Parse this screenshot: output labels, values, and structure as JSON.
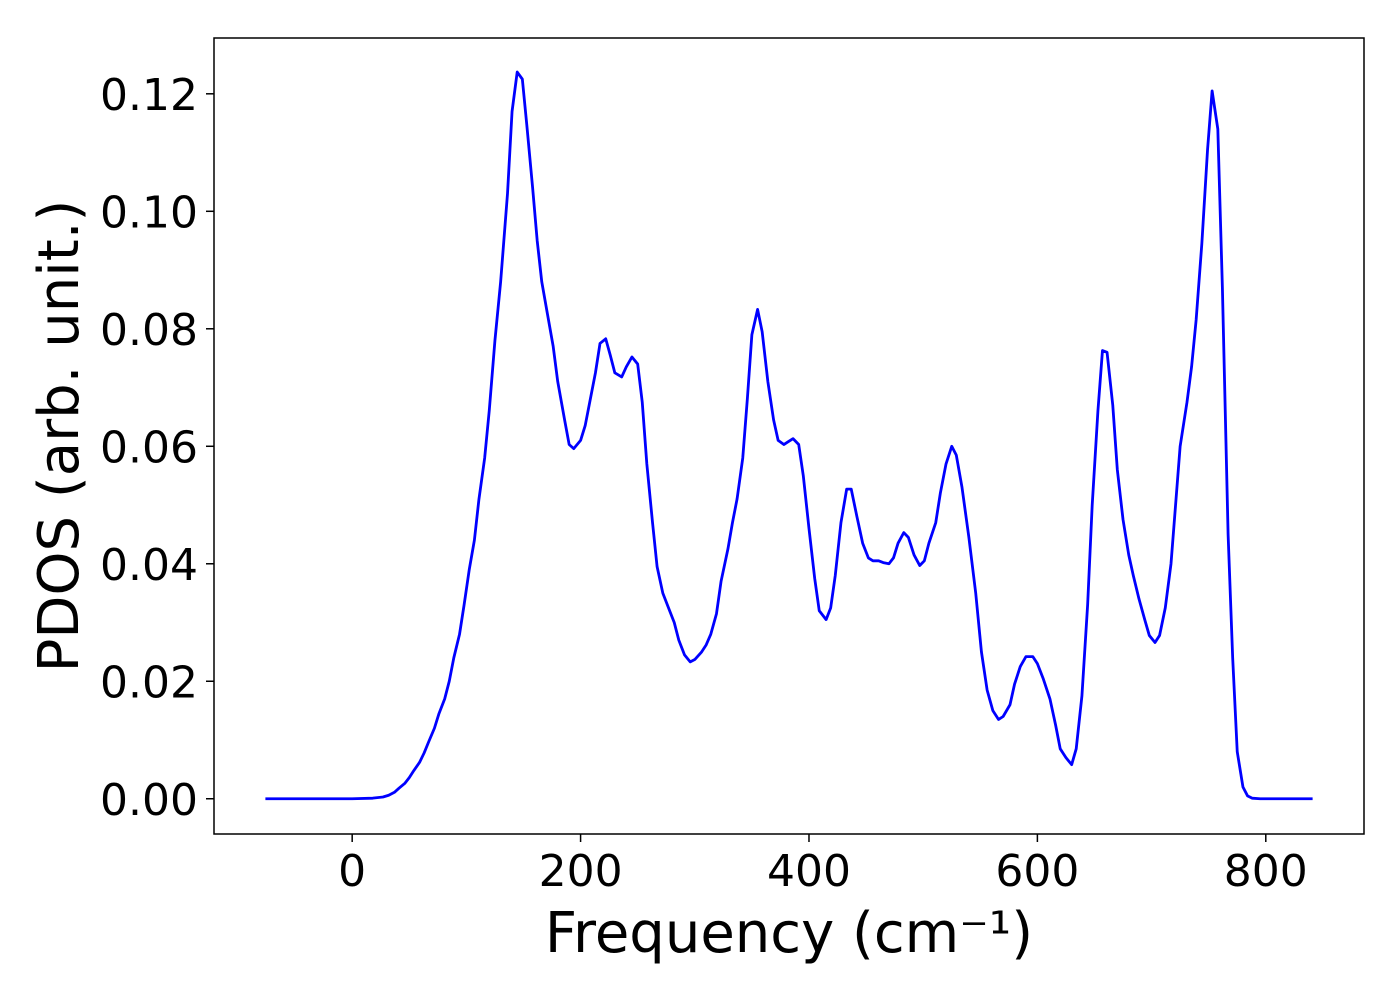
{
  "chart_data": {
    "type": "line",
    "xlabel": "Frequency (cm⁻¹)",
    "ylabel": "PDOS (arb. unit.)",
    "x": [
      -76,
      0,
      18,
      27,
      32,
      37,
      41,
      46,
      50,
      54,
      59,
      63,
      67,
      72,
      76,
      81,
      85,
      89,
      94,
      98,
      102.5,
      107,
      111,
      116,
      120,
      125,
      130,
      136,
      140,
      144.5,
      149,
      153,
      158,
      162,
      166,
      171,
      176,
      180,
      186,
      190,
      194,
      200,
      204,
      208,
      213,
      217,
      222,
      226,
      230,
      236,
      240,
      245,
      250,
      254,
      258,
      263,
      267,
      272,
      277,
      282,
      286,
      291,
      296,
      300,
      306,
      310,
      314,
      319,
      323,
      329,
      333,
      337,
      342,
      346,
      350,
      355,
      359,
      364,
      369,
      373,
      378,
      382,
      386,
      391,
      395,
      400,
      405,
      409,
      415,
      419,
      423,
      428,
      433,
      437,
      442,
      447,
      452,
      456,
      461,
      465,
      470,
      474,
      478,
      483,
      487,
      492,
      497,
      501,
      505,
      511,
      515,
      520,
      525,
      529,
      534,
      540,
      546,
      551,
      556,
      561,
      566,
      570,
      576,
      580,
      585,
      590,
      596,
      600,
      605,
      611,
      616,
      620,
      625,
      630,
      634,
      639,
      644,
      648,
      653,
      657,
      661,
      666,
      670,
      675,
      680,
      684,
      689,
      694,
      698,
      703,
      707,
      712,
      717,
      721,
      725,
      731,
      735,
      739,
      744,
      749,
      753,
      758,
      762,
      767,
      771,
      775,
      780,
      784,
      788,
      795,
      841
    ],
    "series": [
      {
        "name": "PDOS",
        "color": "#0000ff",
        "values": [
          0,
          0,
          0.0001,
          0.0003,
          0.0006,
          0.0011,
          0.0018,
          0.0026,
          0.0036,
          0.0048,
          0.0062,
          0.0078,
          0.0097,
          0.012,
          0.0145,
          0.017,
          0.02,
          0.024,
          0.028,
          0.033,
          0.039,
          0.044,
          0.051,
          0.058,
          0.066,
          0.078,
          0.088,
          0.103,
          0.117,
          0.1237,
          0.1225,
          0.1145,
          0.104,
          0.095,
          0.088,
          0.0825,
          0.077,
          0.071,
          0.0645,
          0.0603,
          0.0596,
          0.061,
          0.0635,
          0.0675,
          0.0725,
          0.0775,
          0.0783,
          0.0755,
          0.0725,
          0.0718,
          0.0735,
          0.0752,
          0.074,
          0.0675,
          0.057,
          0.047,
          0.0395,
          0.035,
          0.0325,
          0.03,
          0.027,
          0.0245,
          0.0233,
          0.0237,
          0.025,
          0.0262,
          0.028,
          0.0315,
          0.037,
          0.0425,
          0.047,
          0.051,
          0.058,
          0.068,
          0.079,
          0.0833,
          0.0795,
          0.071,
          0.0645,
          0.061,
          0.0603,
          0.0608,
          0.0613,
          0.0603,
          0.055,
          0.046,
          0.0375,
          0.032,
          0.0305,
          0.0325,
          0.038,
          0.047,
          0.0527,
          0.0527,
          0.048,
          0.0435,
          0.041,
          0.0405,
          0.0405,
          0.0402,
          0.04,
          0.041,
          0.0435,
          0.0453,
          0.0445,
          0.0415,
          0.0397,
          0.0405,
          0.0435,
          0.047,
          0.052,
          0.057,
          0.06,
          0.0585,
          0.053,
          0.0445,
          0.035,
          0.025,
          0.0185,
          0.015,
          0.0135,
          0.014,
          0.016,
          0.0195,
          0.0225,
          0.0242,
          0.0242,
          0.023,
          0.0205,
          0.017,
          0.0125,
          0.0085,
          0.007,
          0.0058,
          0.0085,
          0.0175,
          0.033,
          0.05,
          0.066,
          0.0763,
          0.076,
          0.067,
          0.056,
          0.0475,
          0.0415,
          0.038,
          0.034,
          0.0305,
          0.0278,
          0.0266,
          0.0278,
          0.0325,
          0.04,
          0.05,
          0.06,
          0.0675,
          0.0735,
          0.0815,
          0.0945,
          0.1105,
          0.1205,
          0.114,
          0.087,
          0.045,
          0.024,
          0.008,
          0.002,
          0.0005,
          0.0001,
          0,
          0
        ]
      }
    ],
    "xlim": [
      -121,
      886
    ],
    "ylim": [
      -0.006,
      0.1295
    ],
    "xticks": [
      0,
      200,
      400,
      600,
      800
    ],
    "yticks": [
      {
        "value": 0,
        "label": "0.00"
      },
      {
        "value": 0.02,
        "label": "0.02"
      },
      {
        "value": 0.04,
        "label": "0.04"
      },
      {
        "value": 0.06,
        "label": "0.06"
      },
      {
        "value": 0.08,
        "label": "0.08"
      },
      {
        "value": 0.1,
        "label": "0.10"
      },
      {
        "value": 0.12,
        "label": "0.12"
      }
    ],
    "grid": false
  }
}
